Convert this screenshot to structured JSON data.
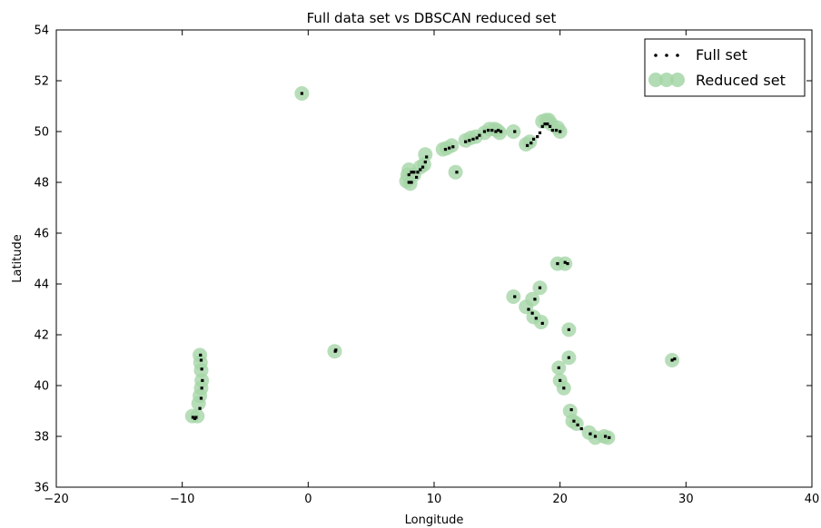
{
  "chart_data": {
    "type": "scatter",
    "title": "Full data set vs DBSCAN reduced set",
    "xlabel": "Longitude",
    "ylabel": "Latitude",
    "xlim": [
      -20,
      40
    ],
    "ylim": [
      36,
      54
    ],
    "xticks": [
      -20,
      -10,
      0,
      10,
      20,
      30,
      40
    ],
    "xtick_labels": [
      "−20",
      "−10",
      "0",
      "10",
      "20",
      "30",
      "40"
    ],
    "yticks": [
      36,
      38,
      40,
      42,
      44,
      46,
      48,
      50,
      52,
      54
    ],
    "ytick_labels": [
      "36",
      "38",
      "40",
      "42",
      "44",
      "46",
      "48",
      "50",
      "52",
      "54"
    ],
    "grid": false,
    "legend_position": "top-right",
    "series": [
      {
        "name": "Full set",
        "color": "#000000",
        "marker": "small-dot",
        "points": [
          [
            -0.5,
            51.5
          ],
          [
            2.15,
            41.35
          ],
          [
            2.2,
            41.4
          ],
          [
            -9.15,
            38.75
          ],
          [
            -9.0,
            38.7
          ],
          [
            -8.9,
            38.75
          ],
          [
            -8.6,
            39.1
          ],
          [
            -8.5,
            39.5
          ],
          [
            -8.45,
            39.9
          ],
          [
            -8.4,
            40.2
          ],
          [
            -8.45,
            40.65
          ],
          [
            -8.5,
            41.0
          ],
          [
            -8.55,
            41.2
          ],
          [
            8.0,
            48.0
          ],
          [
            8.2,
            48.0
          ],
          [
            8.0,
            48.3
          ],
          [
            8.2,
            48.4
          ],
          [
            8.4,
            48.4
          ],
          [
            8.6,
            48.2
          ],
          [
            8.7,
            48.4
          ],
          [
            8.9,
            48.5
          ],
          [
            9.1,
            48.6
          ],
          [
            9.3,
            48.8
          ],
          [
            9.4,
            49.0
          ],
          [
            10.9,
            49.3
          ],
          [
            11.2,
            49.35
          ],
          [
            11.5,
            49.4
          ],
          [
            11.8,
            48.4
          ],
          [
            12.5,
            49.6
          ],
          [
            12.8,
            49.65
          ],
          [
            13.1,
            49.7
          ],
          [
            13.4,
            49.75
          ],
          [
            13.6,
            49.85
          ],
          [
            14.0,
            50.0
          ],
          [
            14.3,
            50.05
          ],
          [
            14.6,
            50.05
          ],
          [
            14.9,
            50.0
          ],
          [
            15.1,
            50.05
          ],
          [
            15.3,
            50.0
          ],
          [
            16.4,
            50.0
          ],
          [
            17.4,
            49.45
          ],
          [
            17.7,
            49.55
          ],
          [
            17.9,
            49.7
          ],
          [
            18.2,
            49.8
          ],
          [
            18.4,
            49.95
          ],
          [
            18.6,
            50.2
          ],
          [
            18.8,
            50.3
          ],
          [
            19.0,
            50.3
          ],
          [
            19.2,
            50.2
          ],
          [
            19.4,
            50.05
          ],
          [
            19.7,
            50.05
          ],
          [
            20.0,
            50.0
          ],
          [
            16.4,
            43.5
          ],
          [
            17.5,
            43.0
          ],
          [
            17.8,
            42.85
          ],
          [
            18.0,
            43.4
          ],
          [
            18.1,
            42.65
          ],
          [
            18.4,
            43.85
          ],
          [
            18.6,
            42.45
          ],
          [
            19.8,
            44.8
          ],
          [
            20.4,
            44.85
          ],
          [
            20.6,
            44.8
          ],
          [
            20.7,
            42.2
          ],
          [
            19.9,
            40.7
          ],
          [
            20.0,
            40.2
          ],
          [
            20.3,
            39.9
          ],
          [
            20.7,
            41.1
          ],
          [
            20.9,
            39.05
          ],
          [
            21.1,
            38.6
          ],
          [
            21.4,
            38.45
          ],
          [
            21.7,
            38.3
          ],
          [
            22.4,
            38.1
          ],
          [
            22.8,
            38.0
          ],
          [
            23.6,
            38.0
          ],
          [
            23.9,
            37.95
          ],
          [
            28.9,
            41.0
          ],
          [
            29.1,
            41.05
          ]
        ]
      },
      {
        "name": "Reduced set",
        "color": "#a5d6a7",
        "marker": "large-circle",
        "points": [
          [
            -0.5,
            51.5
          ],
          [
            2.1,
            41.35
          ],
          [
            -9.2,
            38.8
          ],
          [
            -8.8,
            38.8
          ],
          [
            -8.7,
            39.3
          ],
          [
            -8.6,
            39.6
          ],
          [
            -8.5,
            39.9
          ],
          [
            -8.45,
            40.2
          ],
          [
            -8.5,
            40.6
          ],
          [
            -8.55,
            40.9
          ],
          [
            -8.6,
            41.2
          ],
          [
            7.8,
            48.05
          ],
          [
            8.1,
            47.95
          ],
          [
            7.9,
            48.3
          ],
          [
            8.0,
            48.5
          ],
          [
            8.4,
            48.3
          ],
          [
            8.9,
            48.6
          ],
          [
            9.2,
            48.7
          ],
          [
            9.3,
            49.1
          ],
          [
            10.7,
            49.3
          ],
          [
            11.0,
            49.35
          ],
          [
            11.4,
            49.45
          ],
          [
            11.7,
            48.4
          ],
          [
            12.5,
            49.65
          ],
          [
            12.9,
            49.75
          ],
          [
            13.3,
            49.8
          ],
          [
            14.0,
            49.95
          ],
          [
            14.4,
            50.1
          ],
          [
            14.8,
            50.1
          ],
          [
            15.0,
            50.05
          ],
          [
            15.2,
            49.95
          ],
          [
            16.3,
            50.0
          ],
          [
            17.3,
            49.5
          ],
          [
            17.6,
            49.6
          ],
          [
            18.6,
            50.4
          ],
          [
            18.9,
            50.45
          ],
          [
            19.1,
            50.45
          ],
          [
            19.3,
            50.3
          ],
          [
            19.8,
            50.15
          ],
          [
            20.0,
            50.0
          ],
          [
            16.3,
            43.5
          ],
          [
            17.3,
            43.1
          ],
          [
            17.8,
            43.4
          ],
          [
            17.9,
            42.7
          ],
          [
            18.4,
            43.85
          ],
          [
            18.5,
            42.5
          ],
          [
            19.8,
            44.8
          ],
          [
            20.4,
            44.8
          ],
          [
            20.7,
            42.2
          ],
          [
            20.7,
            41.1
          ],
          [
            19.9,
            40.7
          ],
          [
            20.0,
            40.2
          ],
          [
            20.3,
            39.9
          ],
          [
            20.8,
            39.0
          ],
          [
            21.0,
            38.6
          ],
          [
            21.3,
            38.5
          ],
          [
            22.3,
            38.15
          ],
          [
            22.8,
            37.95
          ],
          [
            23.5,
            38.0
          ],
          [
            23.8,
            37.95
          ],
          [
            28.9,
            41.0
          ]
        ]
      }
    ]
  }
}
